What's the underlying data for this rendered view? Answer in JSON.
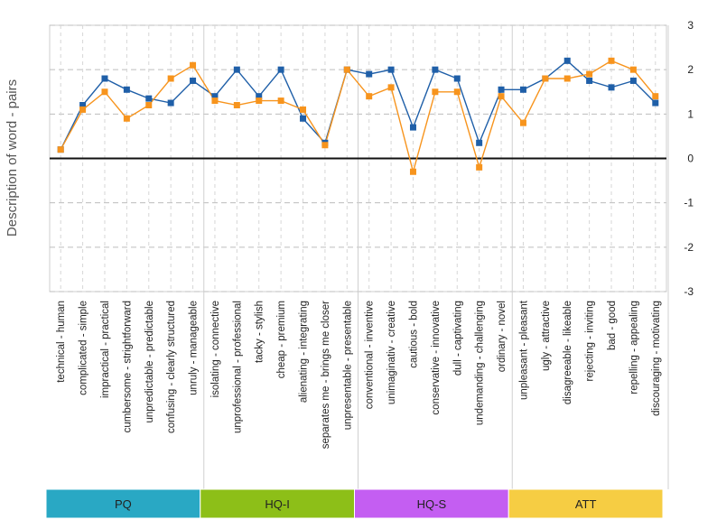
{
  "chart_data": {
    "type": "line",
    "ylabel": "Description of word - pairs",
    "ylim": [
      -3,
      3
    ],
    "yticks": [
      3,
      2,
      1,
      0,
      -1,
      -2,
      -3
    ],
    "grid": true,
    "categories": [
      "technical - human",
      "complicated - simple",
      "impractical - practical",
      "cumbersome - stright​forward",
      "unpredictable - predictable",
      "confusing - clearly structured",
      "unruly - manageable",
      "isolating - connective",
      "unprofessional - professional",
      "tacky - stylish",
      "cheap - premium",
      "alienating - integrating",
      "separates me - brings me closer",
      "unpresentable - presentable",
      "conventional - inventive",
      "unimaginativ - creative",
      "cautious - bold",
      "conservative - innovative",
      "dull - captivating",
      "undemanding - challenging",
      "ordinary - novel",
      "unpleasant - pleasant",
      "ugly - attractive",
      "disagreeable - likeable",
      "rejecting - inviting",
      "bad - good",
      "repelling - appealing",
      "discouraging - motivating"
    ],
    "series": [
      {
        "color": "#1f5fa8",
        "marker": "square",
        "values": [
          0.2,
          1.2,
          1.8,
          1.55,
          1.35,
          1.25,
          1.75,
          1.4,
          2.0,
          1.4,
          2.0,
          0.9,
          0.35,
          2.0,
          1.9,
          2.0,
          0.7,
          2.0,
          1.8,
          0.35,
          1.55,
          1.55,
          1.8,
          2.2,
          1.75,
          1.6,
          1.75,
          1.25
        ]
      },
      {
        "color": "#f7941d",
        "marker": "square",
        "values": [
          0.2,
          1.1,
          1.5,
          0.9,
          1.2,
          1.8,
          2.1,
          1.3,
          1.2,
          1.3,
          1.3,
          1.1,
          0.3,
          2.0,
          1.4,
          1.6,
          -0.3,
          1.5,
          1.5,
          -0.2,
          1.4,
          0.8,
          1.8,
          1.8,
          1.9,
          2.2,
          2.0,
          1.4
        ]
      }
    ],
    "groups": [
      {
        "label": "PQ",
        "start": 0,
        "end": 6,
        "color": "#29a8c4"
      },
      {
        "label": "HQ-I",
        "start": 7,
        "end": 13,
        "color": "#8dbf18"
      },
      {
        "label": "HQ-S",
        "start": 14,
        "end": 20,
        "color": "#c45ef2"
      },
      {
        "label": "ATT",
        "start": 21,
        "end": 27,
        "color": "#f6cd43"
      }
    ]
  }
}
